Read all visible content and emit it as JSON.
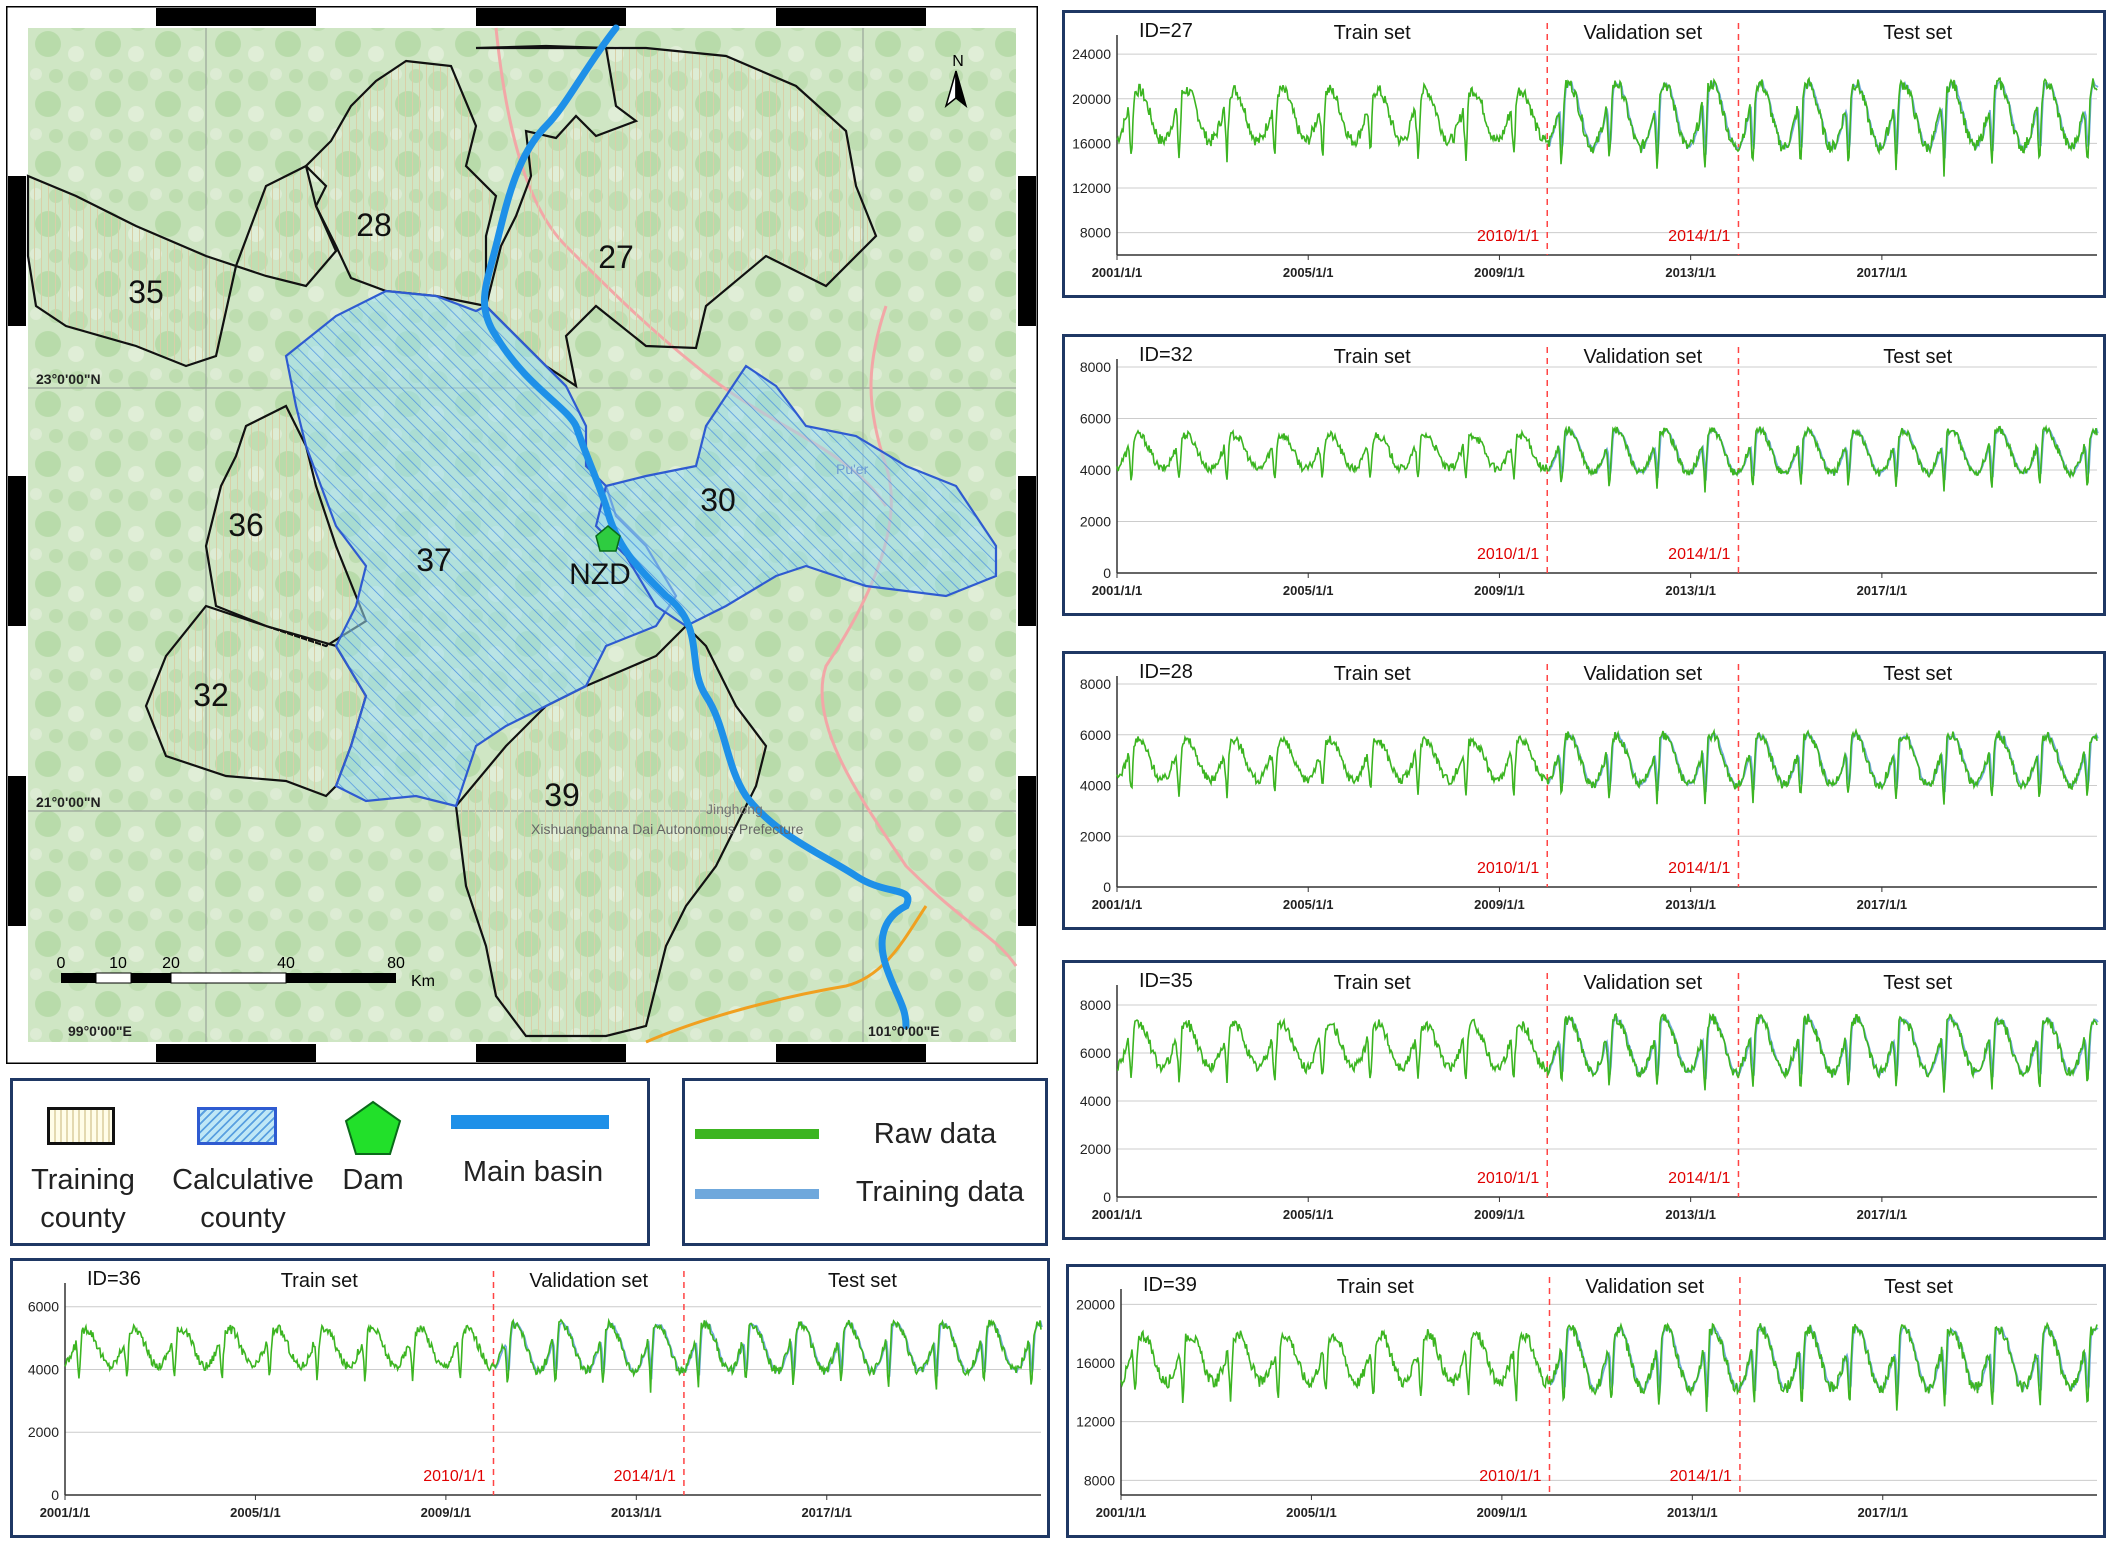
{
  "map": {
    "lat_labels": [
      "23°0'00\"N",
      "21°0'00\"N"
    ],
    "lon_labels": [
      "99°0'00\"E",
      "101°0'00\"E"
    ],
    "north_label": "N",
    "scale": {
      "ticks": [
        "0",
        "10",
        "20",
        "40",
        "80"
      ],
      "unit": "Km"
    },
    "counties": [
      {
        "id": "27",
        "type": "training"
      },
      {
        "id": "28",
        "type": "training"
      },
      {
        "id": "35",
        "type": "training"
      },
      {
        "id": "36",
        "type": "training"
      },
      {
        "id": "32",
        "type": "training"
      },
      {
        "id": "39",
        "type": "training"
      },
      {
        "id": "37",
        "type": "calculative"
      },
      {
        "id": "30",
        "type": "calculative"
      }
    ],
    "dam_label": "NZD",
    "place_labels": [
      "Pu'er",
      "Jinghong",
      "Xishuangbanna Dai Autonomous Prefecture"
    ],
    "colors": {
      "river": "#1e90e8",
      "calculative_fill": "#8fd6ef",
      "calculative_edge": "#2f5bd1",
      "training_edge": "#111111",
      "dam": "#2ecc40"
    }
  },
  "legend_map": {
    "items": [
      {
        "icon": "training-county-icon",
        "label": "Training county"
      },
      {
        "icon": "calculative-county-icon",
        "label": "Calculative county"
      },
      {
        "icon": "dam-icon",
        "label": "Dam"
      },
      {
        "icon": "main-basin-icon",
        "label": "Main basin"
      }
    ]
  },
  "legend_series": {
    "items": [
      {
        "label": "Raw data",
        "color": "#3cb521"
      },
      {
        "label": "Training data",
        "color": "#6fa8dc"
      }
    ]
  },
  "chart_data": [
    {
      "type": "line",
      "id_label": "ID=27",
      "segments": [
        "Train set",
        "Validation set",
        "Test set"
      ],
      "split_labels": [
        "2010/1/1",
        "2014/1/1"
      ],
      "x_ticks": [
        "2001/1/1",
        "2005/1/1",
        "2009/1/1",
        "2013/1/1",
        "2017/1/1"
      ],
      "y_ticks": [
        "8000",
        "12000",
        "16000",
        "20000",
        "24000"
      ],
      "ylim": [
        6000,
        25000
      ],
      "base": 18500,
      "amp": 3800,
      "series": [
        {
          "color": "#3cb521"
        },
        {
          "color": "#6fa8dc"
        }
      ]
    },
    {
      "type": "line",
      "id_label": "ID=32",
      "segments": [
        "Train set",
        "Validation set",
        "Test set"
      ],
      "split_labels": [
        "2010/1/1",
        "2014/1/1"
      ],
      "x_ticks": [
        "2001/1/1",
        "2005/1/1",
        "2009/1/1",
        "2013/1/1",
        "2017/1/1"
      ],
      "y_ticks": [
        "0",
        "2000",
        "4000",
        "6000",
        "8000"
      ],
      "ylim": [
        0,
        8000
      ],
      "base": 4700,
      "amp": 1100,
      "series": [
        {
          "color": "#3cb521"
        },
        {
          "color": "#6fa8dc"
        }
      ]
    },
    {
      "type": "line",
      "id_label": "ID=28",
      "segments": [
        "Train set",
        "Validation set",
        "Test set"
      ],
      "split_labels": [
        "2010/1/1",
        "2014/1/1"
      ],
      "x_ticks": [
        "2001/1/1",
        "2005/1/1",
        "2009/1/1",
        "2013/1/1",
        "2017/1/1"
      ],
      "y_ticks": [
        "0",
        "2000",
        "4000",
        "6000",
        "8000"
      ],
      "ylim": [
        0,
        8000
      ],
      "base": 5000,
      "amp": 1300,
      "series": [
        {
          "color": "#3cb521"
        },
        {
          "color": "#6fa8dc"
        }
      ]
    },
    {
      "type": "line",
      "id_label": "ID=35",
      "segments": [
        "Train set",
        "Validation set",
        "Test set"
      ],
      "split_labels": [
        "2010/1/1",
        "2014/1/1"
      ],
      "x_ticks": [
        "2001/1/1",
        "2005/1/1",
        "2009/1/1",
        "2013/1/1",
        "2017/1/1"
      ],
      "y_ticks": [
        "0",
        "2000",
        "4000",
        "6000",
        "8000"
      ],
      "ylim": [
        0,
        8500
      ],
      "base": 6300,
      "amp": 1500,
      "series": [
        {
          "color": "#3cb521"
        },
        {
          "color": "#6fa8dc"
        }
      ]
    },
    {
      "type": "line",
      "id_label": "ID=36",
      "segments": [
        "Train set",
        "Validation set",
        "Test set"
      ],
      "split_labels": [
        "2010/1/1",
        "2014/1/1"
      ],
      "x_ticks": [
        "2001/1/1",
        "2005/1/1",
        "2009/1/1",
        "2013/1/1",
        "2017/1/1"
      ],
      "y_ticks": [
        "0",
        "2000",
        "4000",
        "6000"
      ],
      "ylim": [
        0,
        6500
      ],
      "base": 4700,
      "amp": 1000,
      "series": [
        {
          "color": "#3cb521"
        },
        {
          "color": "#6fa8dc"
        }
      ]
    },
    {
      "type": "line",
      "id_label": "ID=39",
      "segments": [
        "Train set",
        "Validation set",
        "Test set"
      ],
      "split_labels": [
        "2010/1/1",
        "2014/1/1"
      ],
      "x_ticks": [
        "2001/1/1",
        "2005/1/1",
        "2009/1/1",
        "2013/1/1",
        "2017/1/1"
      ],
      "y_ticks": [
        "8000",
        "12000",
        "16000",
        "20000"
      ],
      "ylim": [
        7000,
        20500
      ],
      "base": 16300,
      "amp": 2700,
      "series": [
        {
          "color": "#3cb521"
        },
        {
          "color": "#6fa8dc"
        }
      ]
    }
  ]
}
